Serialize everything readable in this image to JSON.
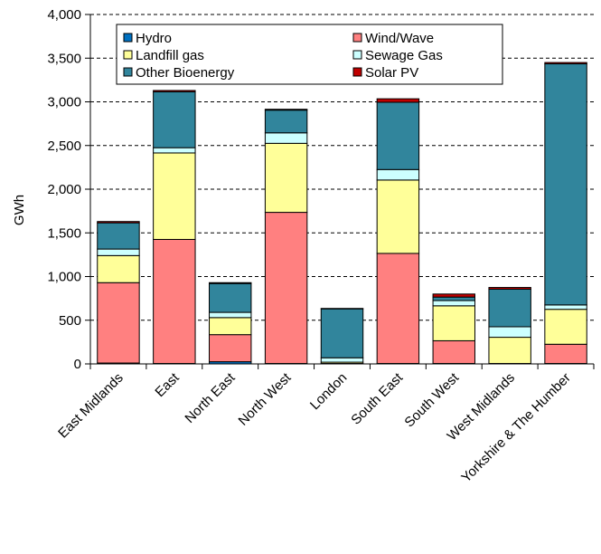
{
  "chart_data": {
    "type": "bar",
    "stacked": true,
    "ylabel": "GWh",
    "xlabel": "",
    "ylim": [
      0,
      4000
    ],
    "yticks": [
      0,
      500,
      1000,
      1500,
      2000,
      2500,
      3000,
      3500,
      4000
    ],
    "ytick_labels": [
      "0",
      "500",
      "1,000",
      "1,500",
      "2,000",
      "2,500",
      "3,000",
      "3,500",
      "4,000"
    ],
    "grid": true,
    "legend_position": "top",
    "categories": [
      "East Midlands",
      "East",
      "North East",
      "North West",
      "London",
      "South East",
      "South West",
      "West Midlands",
      "Yorkshire & The Humber"
    ],
    "series": [
      {
        "name": "Hydro",
        "color": "#0070C0",
        "values": [
          10,
          5,
          25,
          5,
          0,
          5,
          5,
          5,
          5
        ]
      },
      {
        "name": "Wind/Wave",
        "color": "#FF8080",
        "values": [
          920,
          1420,
          310,
          1730,
          5,
          1260,
          260,
          0,
          220
        ]
      },
      {
        "name": "Landfill gas",
        "color": "#FFFF99",
        "values": [
          310,
          990,
          195,
          790,
          15,
          840,
          400,
          300,
          400
        ]
      },
      {
        "name": "Sewage Gas",
        "color": "#CCFFFF",
        "values": [
          75,
          60,
          60,
          120,
          50,
          120,
          60,
          120,
          50
        ]
      },
      {
        "name": "Other Bioenergy",
        "color": "#31859C",
        "values": [
          300,
          640,
          330,
          260,
          560,
          770,
          40,
          430,
          2760
        ]
      },
      {
        "name": "Solar PV",
        "color": "#C00000",
        "values": [
          15,
          15,
          10,
          10,
          5,
          40,
          35,
          20,
          15
        ]
      }
    ]
  }
}
